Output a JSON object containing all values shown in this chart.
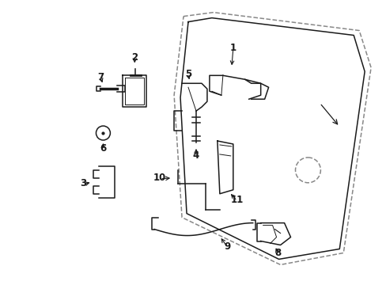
{
  "background_color": "#ffffff",
  "line_color": "#1a1a1a",
  "dashed_color": "#888888",
  "figsize": [
    4.89,
    3.6
  ],
  "dpi": 100
}
